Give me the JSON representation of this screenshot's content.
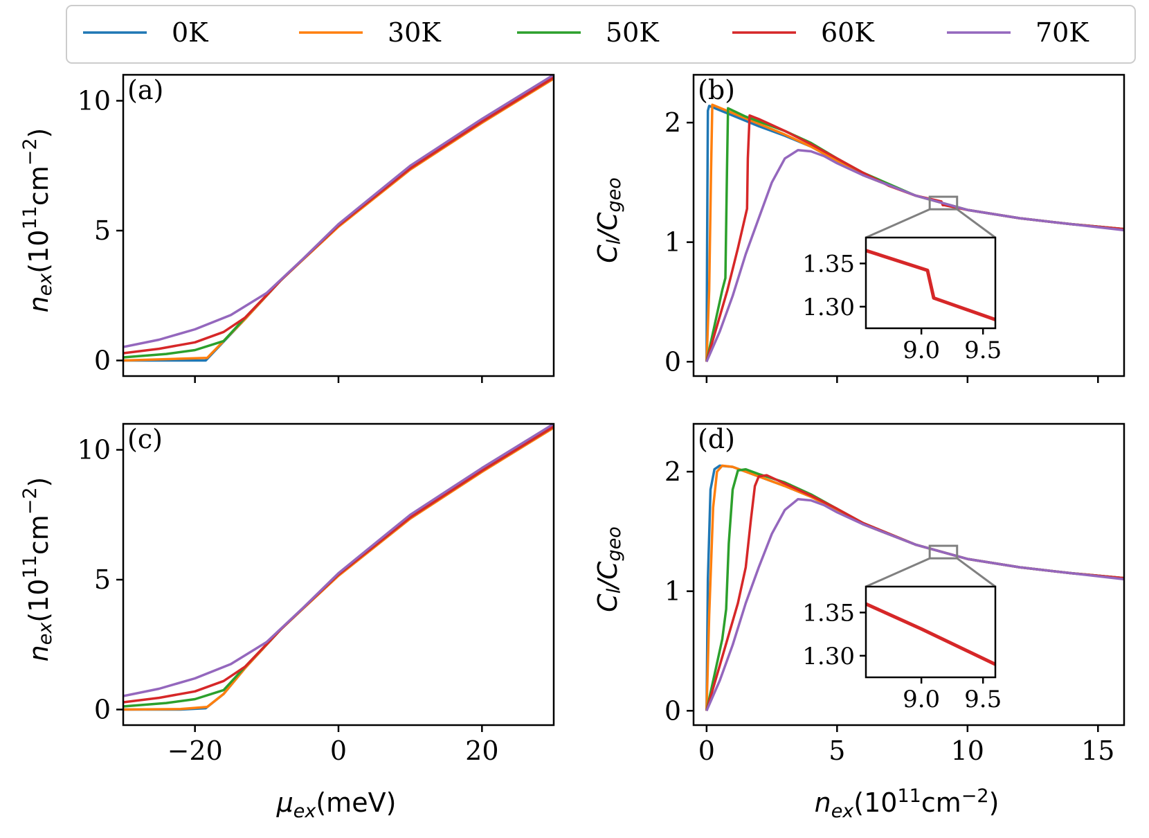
{
  "legend": [
    {
      "label": "0K",
      "color": "#1f77b4"
    },
    {
      "label": "30K",
      "color": "#ff7f0e"
    },
    {
      "label": "50K",
      "color": "#2ca02c"
    },
    {
      "label": "60K",
      "color": "#d62728"
    },
    {
      "label": "70K",
      "color": "#9467bd"
    }
  ],
  "labels": {
    "mu_axis": "μ_ex(meV)",
    "n_axis": "n_ex(10^11cm^−2)",
    "c_axis": "C_l/C_geo"
  },
  "chart_data": [
    {
      "panel": "(a)",
      "type": "line",
      "title": "",
      "xlabel": "",
      "ylabel": "n_ex(10^11cm^-2)",
      "xlim": [
        -30,
        30
      ],
      "ylim": [
        -0.6,
        11
      ],
      "xticks": [
        -20,
        0,
        20
      ],
      "xticklabels_shown": false,
      "yticks": [
        0,
        5,
        10
      ],
      "series": [
        {
          "name": "0K",
          "color": "#1f77b4",
          "x": [
            -30,
            -18.5,
            -13,
            -8,
            0,
            10,
            20,
            30
          ],
          "y": [
            0,
            0,
            1.6,
            3.1,
            5.2,
            7.4,
            9.2,
            10.9
          ]
        },
        {
          "name": "30K",
          "color": "#ff7f0e",
          "x": [
            -30,
            -18.3,
            -13,
            -8,
            0,
            10,
            20,
            30
          ],
          "y": [
            0,
            0.1,
            1.6,
            3.1,
            5.15,
            7.35,
            9.15,
            10.85
          ]
        },
        {
          "name": "50K",
          "color": "#2ca02c",
          "x": [
            -30,
            -24,
            -20,
            -16,
            -13,
            -8,
            0,
            10,
            20,
            30
          ],
          "y": [
            0.12,
            0.25,
            0.4,
            0.75,
            1.65,
            3.1,
            5.2,
            7.4,
            9.2,
            10.9
          ]
        },
        {
          "name": "60K",
          "color": "#d62728",
          "x": [
            -30,
            -25,
            -20,
            -16,
            -13,
            -8,
            0,
            10,
            20,
            30
          ],
          "y": [
            0.28,
            0.45,
            0.7,
            1.1,
            1.65,
            3.1,
            5.2,
            7.4,
            9.2,
            10.9
          ]
        },
        {
          "name": "70K",
          "color": "#9467bd",
          "x": [
            -30,
            -25,
            -20,
            -15,
            -10,
            -5,
            0,
            10,
            20,
            30
          ],
          "y": [
            0.52,
            0.8,
            1.2,
            1.75,
            2.6,
            3.9,
            5.25,
            7.5,
            9.3,
            11
          ]
        }
      ]
    },
    {
      "panel": "(b)",
      "type": "line",
      "title": "",
      "xlabel": "",
      "ylabel": "C_l/C_geo",
      "xlim": [
        -0.5,
        16
      ],
      "ylim": [
        -0.12,
        2.4
      ],
      "xticks": [
        0,
        5,
        10,
        15
      ],
      "xticklabels_shown": false,
      "yticks": [
        0,
        1,
        2
      ],
      "series": [
        {
          "name": "0K",
          "color": "#1f77b4",
          "x": [
            0,
            0.02,
            0.05,
            0.1,
            1,
            2,
            3,
            4,
            5,
            6,
            8,
            10,
            12,
            14,
            16
          ],
          "y": [
            0,
            1.0,
            2.1,
            2.14,
            2.06,
            1.97,
            1.89,
            1.8,
            1.68,
            1.56,
            1.39,
            1.27,
            1.2,
            1.15,
            1.11
          ]
        },
        {
          "name": "30K",
          "color": "#ff7f0e",
          "x": [
            0,
            0.1,
            0.17,
            0.22,
            1,
            2,
            3,
            4,
            5,
            6,
            8,
            10,
            12,
            14,
            16
          ],
          "y": [
            0,
            0.6,
            1.6,
            2.15,
            2.08,
            1.99,
            1.9,
            1.8,
            1.68,
            1.56,
            1.39,
            1.27,
            1.2,
            1.15,
            1.11
          ]
        },
        {
          "name": "50K",
          "color": "#2ca02c",
          "x": [
            0,
            0.3,
            0.6,
            0.72,
            0.78,
            0.82,
            1.5,
            2,
            3,
            4,
            5,
            6,
            8,
            10,
            12,
            14,
            16
          ],
          "y": [
            0,
            0.3,
            0.6,
            0.7,
            1.6,
            2.12,
            2.05,
            2.01,
            1.93,
            1.83,
            1.7,
            1.58,
            1.39,
            1.27,
            1.2,
            1.15,
            1.11
          ]
        },
        {
          "name": "60K",
          "color": "#d62728",
          "x": [
            0,
            0.4,
            0.8,
            1.2,
            1.55,
            1.58,
            1.65,
            2,
            2.5,
            3,
            4,
            5,
            6,
            7,
            8,
            9,
            9.05,
            9.1,
            10,
            12,
            14,
            16
          ],
          "y": [
            0,
            0.3,
            0.6,
            0.95,
            1.28,
            1.7,
            2.06,
            2.03,
            1.98,
            1.93,
            1.82,
            1.7,
            1.58,
            1.47,
            1.39,
            1.34,
            1.31,
            1.31,
            1.27,
            1.2,
            1.15,
            1.11
          ]
        },
        {
          "name": "70K",
          "color": "#9467bd",
          "x": [
            0,
            0.5,
            1,
            1.5,
            2,
            2.5,
            3,
            3.5,
            4,
            4.5,
            5,
            6,
            8,
            10,
            12,
            14,
            16
          ],
          "y": [
            0,
            0.25,
            0.55,
            0.9,
            1.2,
            1.5,
            1.7,
            1.77,
            1.76,
            1.72,
            1.66,
            1.56,
            1.39,
            1.27,
            1.2,
            1.15,
            1.1
          ]
        }
      ],
      "inset": {
        "xlim": [
          8.55,
          9.6
        ],
        "ylim": [
          1.275,
          1.38
        ],
        "xticks": [
          9.0,
          9.5
        ],
        "yticks": [
          1.3,
          1.35
        ],
        "series": [
          {
            "name": "60K",
            "color": "#d62728",
            "x": [
              8.55,
              9.05,
              9.1,
              9.6
            ],
            "y": [
              1.365,
              1.342,
              1.31,
              1.285
            ]
          }
        ]
      }
    },
    {
      "panel": "(c)",
      "type": "line",
      "title": "",
      "xlabel": "μ_ex(meV)",
      "ylabel": "n_ex(10^11cm^-2)",
      "xlim": [
        -30,
        30
      ],
      "ylim": [
        -0.6,
        11
      ],
      "xticks": [
        -20,
        0,
        20
      ],
      "xticklabels_shown": true,
      "yticks": [
        0,
        5,
        10
      ],
      "series": [
        {
          "name": "0K",
          "color": "#1f77b4",
          "x": [
            -30,
            -22,
            -18.5,
            -16,
            -13,
            -8,
            0,
            10,
            20,
            30
          ],
          "y": [
            0,
            0,
            0.05,
            0.6,
            1.6,
            3.1,
            5.2,
            7.4,
            9.2,
            10.9
          ]
        },
        {
          "name": "30K",
          "color": "#ff7f0e",
          "x": [
            -30,
            -22,
            -18.3,
            -16,
            -13,
            -8,
            0,
            10,
            20,
            30
          ],
          "y": [
            0,
            0.02,
            0.1,
            0.6,
            1.6,
            3.1,
            5.15,
            7.35,
            9.15,
            10.85
          ]
        },
        {
          "name": "50K",
          "color": "#2ca02c",
          "x": [
            -30,
            -24,
            -20,
            -16,
            -13,
            -8,
            0,
            10,
            20,
            30
          ],
          "y": [
            0.12,
            0.25,
            0.4,
            0.75,
            1.65,
            3.1,
            5.2,
            7.4,
            9.2,
            10.9
          ]
        },
        {
          "name": "60K",
          "color": "#d62728",
          "x": [
            -30,
            -25,
            -20,
            -16,
            -13,
            -8,
            0,
            10,
            20,
            30
          ],
          "y": [
            0.28,
            0.45,
            0.7,
            1.1,
            1.65,
            3.1,
            5.2,
            7.4,
            9.2,
            10.9
          ]
        },
        {
          "name": "70K",
          "color": "#9467bd",
          "x": [
            -30,
            -25,
            -20,
            -15,
            -10,
            -5,
            0,
            10,
            20,
            30
          ],
          "y": [
            0.52,
            0.8,
            1.2,
            1.75,
            2.6,
            3.9,
            5.25,
            7.5,
            9.3,
            11
          ]
        }
      ]
    },
    {
      "panel": "(d)",
      "type": "line",
      "title": "",
      "xlabel": "n_ex(10^11cm^-2)",
      "ylabel": "C_l/C_geo",
      "xlim": [
        -0.5,
        16
      ],
      "ylim": [
        -0.12,
        2.4
      ],
      "xticks": [
        0,
        5,
        10,
        15
      ],
      "xticklabels_shown": true,
      "yticks": [
        0,
        1,
        2
      ],
      "series": [
        {
          "name": "0K",
          "color": "#1f77b4",
          "x": [
            0,
            0.05,
            0.15,
            0.3,
            0.5,
            1,
            2,
            3,
            4,
            5,
            6,
            8,
            10,
            12,
            14,
            16
          ],
          "y": [
            0,
            1.1,
            1.85,
            2.02,
            2.05,
            2.04,
            1.96,
            1.88,
            1.79,
            1.68,
            1.56,
            1.39,
            1.27,
            1.2,
            1.15,
            1.11
          ]
        },
        {
          "name": "30K",
          "color": "#ff7f0e",
          "x": [
            0,
            0.1,
            0.25,
            0.4,
            0.6,
            1,
            2,
            3,
            4,
            5,
            6,
            8,
            10,
            12,
            14,
            16
          ],
          "y": [
            0,
            0.8,
            1.7,
            2.0,
            2.05,
            2.04,
            1.96,
            1.88,
            1.79,
            1.68,
            1.56,
            1.39,
            1.27,
            1.2,
            1.15,
            1.11
          ]
        },
        {
          "name": "50K",
          "color": "#2ca02c",
          "x": [
            0,
            0.3,
            0.6,
            0.75,
            0.85,
            1.0,
            1.2,
            1.5,
            2,
            3,
            4,
            5,
            6,
            8,
            10,
            12,
            14,
            16
          ],
          "y": [
            0,
            0.3,
            0.6,
            0.85,
            1.4,
            1.85,
            2.01,
            2.02,
            1.98,
            1.91,
            1.81,
            1.69,
            1.57,
            1.39,
            1.27,
            1.2,
            1.15,
            1.11
          ]
        },
        {
          "name": "60K",
          "color": "#d62728",
          "x": [
            0,
            0.4,
            0.8,
            1.2,
            1.5,
            1.7,
            1.85,
            2.0,
            2.3,
            3,
            4,
            5,
            6,
            8,
            10,
            12,
            14,
            16
          ],
          "y": [
            0,
            0.3,
            0.6,
            0.9,
            1.2,
            1.6,
            1.88,
            1.96,
            1.97,
            1.9,
            1.8,
            1.69,
            1.57,
            1.39,
            1.27,
            1.2,
            1.15,
            1.11
          ]
        },
        {
          "name": "70K",
          "color": "#9467bd",
          "x": [
            0,
            0.5,
            1,
            1.5,
            2,
            2.5,
            3,
            3.5,
            4,
            4.5,
            5,
            6,
            8,
            10,
            12,
            14,
            16
          ],
          "y": [
            0,
            0.25,
            0.55,
            0.9,
            1.2,
            1.48,
            1.68,
            1.77,
            1.76,
            1.72,
            1.66,
            1.56,
            1.39,
            1.27,
            1.2,
            1.15,
            1.1
          ]
        }
      ],
      "inset": {
        "xlim": [
          8.55,
          9.6
        ],
        "ylim": [
          1.275,
          1.38
        ],
        "xticks": [
          9.0,
          9.5
        ],
        "yticks": [
          1.3,
          1.35
        ],
        "series": [
          {
            "name": "60K",
            "color": "#d62728",
            "x": [
              8.55,
              9.0,
              9.6
            ],
            "y": [
              1.36,
              1.331,
              1.29
            ]
          }
        ]
      }
    }
  ]
}
